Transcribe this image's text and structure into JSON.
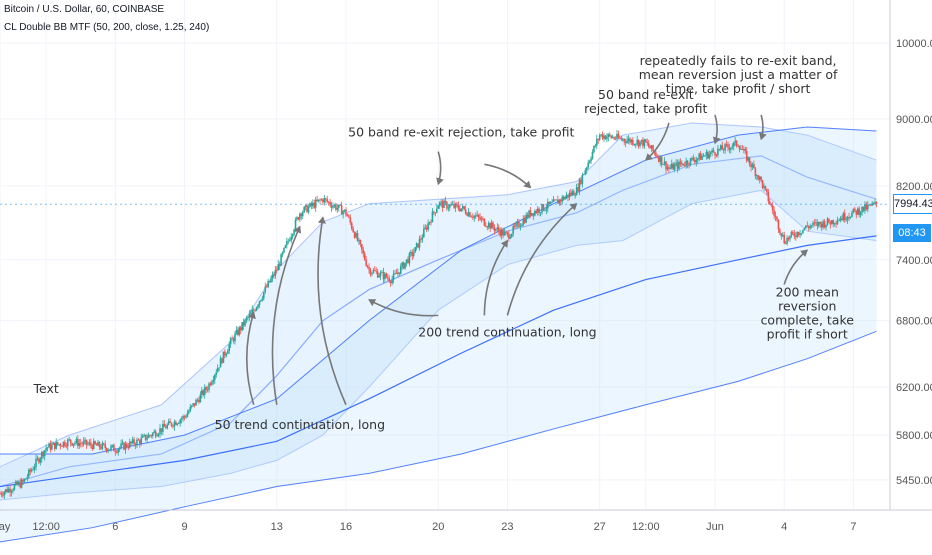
{
  "header": {
    "symbol_line": "Bitcoin / U.S. Dollar, 60, COINBASE",
    "indicator_line": "CL Double BB MTF (50, 200, close, 1.25, 240)"
  },
  "price_badges": {
    "last_price": "7994.43",
    "countdown": "08:43"
  },
  "colors": {
    "up_candle": "#26a69a",
    "down_candle": "#ef5350",
    "band_line": "#2962ff",
    "band_fill": "#bbdefb",
    "accent": "#2196f3",
    "arrow": "#777777"
  },
  "chart_data": {
    "type": "candlestick",
    "symbol": "Bitcoin / U.S. Dollar",
    "interval": "60",
    "exchange": "COINBASE",
    "y_scale": "log",
    "ylim": [
      5300,
      10500
    ],
    "y_ticks": [
      5450,
      5800,
      6200,
      6800,
      7400,
      8200,
      9000,
      10000
    ],
    "y_tick_labels": [
      "5450.00",
      "5800.00",
      "6200.00",
      "6800.00",
      "7400.00",
      "8200.00",
      "9000.00",
      "10000.00"
    ],
    "x_range": [
      "2019-05-01",
      "2019-06-08T12:00"
    ],
    "x_ticks": [
      {
        "t": "2019-05-01",
        "label": "May"
      },
      {
        "t": "2019-05-03",
        "label": "12:00"
      },
      {
        "t": "2019-05-06",
        "label": "6"
      },
      {
        "t": "2019-05-09",
        "label": "9"
      },
      {
        "t": "2019-05-13",
        "label": "13"
      },
      {
        "t": "2019-05-16",
        "label": "16"
      },
      {
        "t": "2019-05-20",
        "label": "20"
      },
      {
        "t": "2019-05-23",
        "label": "23"
      },
      {
        "t": "2019-05-27",
        "label": "27"
      },
      {
        "t": "2019-05-29",
        "label": "12:00"
      },
      {
        "t": "2019-06-01",
        "label": "Jun"
      },
      {
        "t": "2019-06-04",
        "label": "4"
      },
      {
        "t": "2019-06-07",
        "label": "7"
      }
    ],
    "price_path": [
      {
        "t": "2019-05-01",
        "close": 5350
      },
      {
        "t": "2019-05-02",
        "close": 5430
      },
      {
        "t": "2019-05-03",
        "close": 5700
      },
      {
        "t": "2019-05-04",
        "close": 5750
      },
      {
        "t": "2019-05-05",
        "close": 5720
      },
      {
        "t": "2019-05-06",
        "close": 5690
      },
      {
        "t": "2019-05-07",
        "close": 5750
      },
      {
        "t": "2019-05-08",
        "close": 5850
      },
      {
        "t": "2019-05-09",
        "close": 5950
      },
      {
        "t": "2019-05-10",
        "close": 6200
      },
      {
        "t": "2019-05-11",
        "close": 6600
      },
      {
        "t": "2019-05-12",
        "close": 6900
      },
      {
        "t": "2019-05-13",
        "close": 7300
      },
      {
        "t": "2019-05-14",
        "close": 7900
      },
      {
        "t": "2019-05-15",
        "close": 8050
      },
      {
        "t": "2019-05-16",
        "close": 7900
      },
      {
        "t": "2019-05-17",
        "close": 7300
      },
      {
        "t": "2019-05-18",
        "close": 7200
      },
      {
        "t": "2019-05-19",
        "close": 7500
      },
      {
        "t": "2019-05-20",
        "close": 8000
      },
      {
        "t": "2019-05-21",
        "close": 7950
      },
      {
        "t": "2019-05-22",
        "close": 7800
      },
      {
        "t": "2019-05-23",
        "close": 7650
      },
      {
        "t": "2019-05-24",
        "close": 7900
      },
      {
        "t": "2019-05-25",
        "close": 8000
      },
      {
        "t": "2019-05-26",
        "close": 8150
      },
      {
        "t": "2019-05-27",
        "close": 8800
      },
      {
        "t": "2019-05-28",
        "close": 8750
      },
      {
        "t": "2019-05-29",
        "close": 8700
      },
      {
        "t": "2019-05-30",
        "close": 8400
      },
      {
        "t": "2019-05-31",
        "close": 8500
      },
      {
        "t": "2019-06-01",
        "close": 8600
      },
      {
        "t": "2019-06-02",
        "close": 8700
      },
      {
        "t": "2019-06-03",
        "close": 8250
      },
      {
        "t": "2019-06-04",
        "close": 7600
      },
      {
        "t": "2019-06-05",
        "close": 7750
      },
      {
        "t": "2019-06-06",
        "close": 7800
      },
      {
        "t": "2019-06-07",
        "close": 7900
      },
      {
        "t": "2019-06-08",
        "close": 7994.43
      }
    ],
    "series": [
      {
        "id": "bb50",
        "path": [
          {
            "t": "2019-05-01",
            "upper": 5550,
            "mid": 5400,
            "lower": 5300
          },
          {
            "t": "2019-05-04",
            "upper": 5800,
            "mid": 5550,
            "lower": 5350
          },
          {
            "t": "2019-05-08",
            "upper": 6050,
            "mid": 5650,
            "lower": 5400
          },
          {
            "t": "2019-05-11",
            "upper": 6600,
            "mid": 5900,
            "lower": 5500
          },
          {
            "t": "2019-05-13",
            "upper": 7300,
            "mid": 6300,
            "lower": 5600
          },
          {
            "t": "2019-05-15",
            "upper": 7800,
            "mid": 6800,
            "lower": 5800
          },
          {
            "t": "2019-05-17",
            "upper": 8000,
            "mid": 7100,
            "lower": 6200
          },
          {
            "t": "2019-05-20",
            "upper": 8050,
            "mid": 7400,
            "lower": 6900
          },
          {
            "t": "2019-05-23",
            "upper": 8100,
            "mid": 7700,
            "lower": 7350
          },
          {
            "t": "2019-05-26",
            "upper": 8250,
            "mid": 7900,
            "lower": 7550
          },
          {
            "t": "2019-05-28",
            "upper": 8800,
            "mid": 8150,
            "lower": 7600
          },
          {
            "t": "2019-05-31",
            "upper": 8950,
            "mid": 8450,
            "lower": 8000
          },
          {
            "t": "2019-06-03",
            "upper": 8900,
            "mid": 8550,
            "lower": 8150
          },
          {
            "t": "2019-06-05",
            "upper": 8800,
            "mid": 8300,
            "lower": 7700
          },
          {
            "t": "2019-06-08",
            "upper": 8500,
            "mid": 8050,
            "lower": 7600
          }
        ]
      },
      {
        "id": "bb200",
        "path": [
          {
            "t": "2019-05-01",
            "upper": 5650,
            "mid": 5400,
            "lower": 5000
          },
          {
            "t": "2019-05-05",
            "upper": 5650,
            "mid": 5500,
            "lower": 5100
          },
          {
            "t": "2019-05-09",
            "upper": 5800,
            "mid": 5600,
            "lower": 5250
          },
          {
            "t": "2019-05-13",
            "upper": 6100,
            "mid": 5750,
            "lower": 5400
          },
          {
            "t": "2019-05-17",
            "upper": 6800,
            "mid": 6100,
            "lower": 5500
          },
          {
            "t": "2019-05-21",
            "upper": 7500,
            "mid": 6500,
            "lower": 5650
          },
          {
            "t": "2019-05-25",
            "upper": 8000,
            "mid": 6900,
            "lower": 5850
          },
          {
            "t": "2019-05-29",
            "upper": 8500,
            "mid": 7200,
            "lower": 6050
          },
          {
            "t": "2019-06-02",
            "upper": 8800,
            "mid": 7400,
            "lower": 6250
          },
          {
            "t": "2019-06-05",
            "upper": 8900,
            "mid": 7550,
            "lower": 6450
          },
          {
            "t": "2019-06-08",
            "upper": 8850,
            "mid": 7650,
            "lower": 6700
          }
        ]
      }
    ],
    "annotations": [
      {
        "text": [
          "Text"
        ],
        "at": {
          "t": "2019-05-03",
          "price": 6150
        }
      },
      {
        "text": [
          "50 trend continuation, long"
        ],
        "at": {
          "t": "2019-05-14",
          "price": 5850
        },
        "arrows": [
          {
            "from": {
              "t": "2019-05-12",
              "price": 6050
            },
            "to": {
              "t": "2019-05-12",
              "price": 6880
            }
          },
          {
            "from": {
              "t": "2019-05-13",
              "price": 6050
            },
            "to": {
              "t": "2019-05-14",
              "price": 7750
            }
          },
          {
            "from": {
              "t": "2019-05-16",
              "price": 6050
            },
            "to": {
              "t": "2019-05-15",
              "price": 7850
            }
          }
        ]
      },
      {
        "text": [
          "50 band re-exit rejection, take profit"
        ],
        "at": {
          "t": "2019-05-21",
          "price": 8780
        },
        "arrows": [
          {
            "from": {
              "t": "2019-05-20",
              "price": 8600
            },
            "to": {
              "t": "2019-05-20",
              "price": 8220
            }
          },
          {
            "from": {
              "t": "2019-05-22",
              "price": 8450
            },
            "to": {
              "t": "2019-05-24",
              "price": 8180
            }
          }
        ]
      },
      {
        "text": [
          "200 trend continuation, long"
        ],
        "at": {
          "t": "2019-05-23",
          "price": 6650
        },
        "arrows": [
          {
            "from": {
              "t": "2019-05-20",
              "price": 6850
            },
            "to": {
              "t": "2019-05-17",
              "price": 7000
            }
          },
          {
            "from": {
              "t": "2019-05-22",
              "price": 6850
            },
            "to": {
              "t": "2019-05-23",
              "price": 7600
            }
          },
          {
            "from": {
              "t": "2019-05-23",
              "price": 6850
            },
            "to": {
              "t": "2019-05-26",
              "price": 8000
            }
          }
        ]
      },
      {
        "text": [
          "50 band re-exit",
          "rejected, take profit"
        ],
        "at": {
          "t": "2019-05-29",
          "price": 9250
        },
        "arrows": [
          {
            "from": {
              "t": "2019-05-30",
              "price": 8950
            },
            "to": {
              "t": "2019-05-29",
              "price": 8500
            }
          }
        ]
      },
      {
        "text": [
          "repeatedly fails to re-exit band,",
          "mean reversion just a matter of",
          "time, take profit / short"
        ],
        "at": {
          "t": "2019-06-02",
          "price": 9700
        },
        "arrows": [
          {
            "from": {
              "t": "2019-06-01",
              "price": 9050
            },
            "to": {
              "t": "2019-06-01",
              "price": 8700
            }
          },
          {
            "from": {
              "t": "2019-06-03",
              "price": 9050
            },
            "to": {
              "t": "2019-06-03",
              "price": 8750
            }
          }
        ]
      },
      {
        "text": [
          "200 mean",
          "reversion",
          "complete, take",
          "profit if short"
        ],
        "at": {
          "t": "2019-06-05",
          "price": 7030
        },
        "arrows": [
          {
            "from": {
              "t": "2019-06-04",
              "price": 7150
            },
            "to": {
              "t": "2019-06-05",
              "price": 7500
            }
          }
        ]
      }
    ]
  }
}
